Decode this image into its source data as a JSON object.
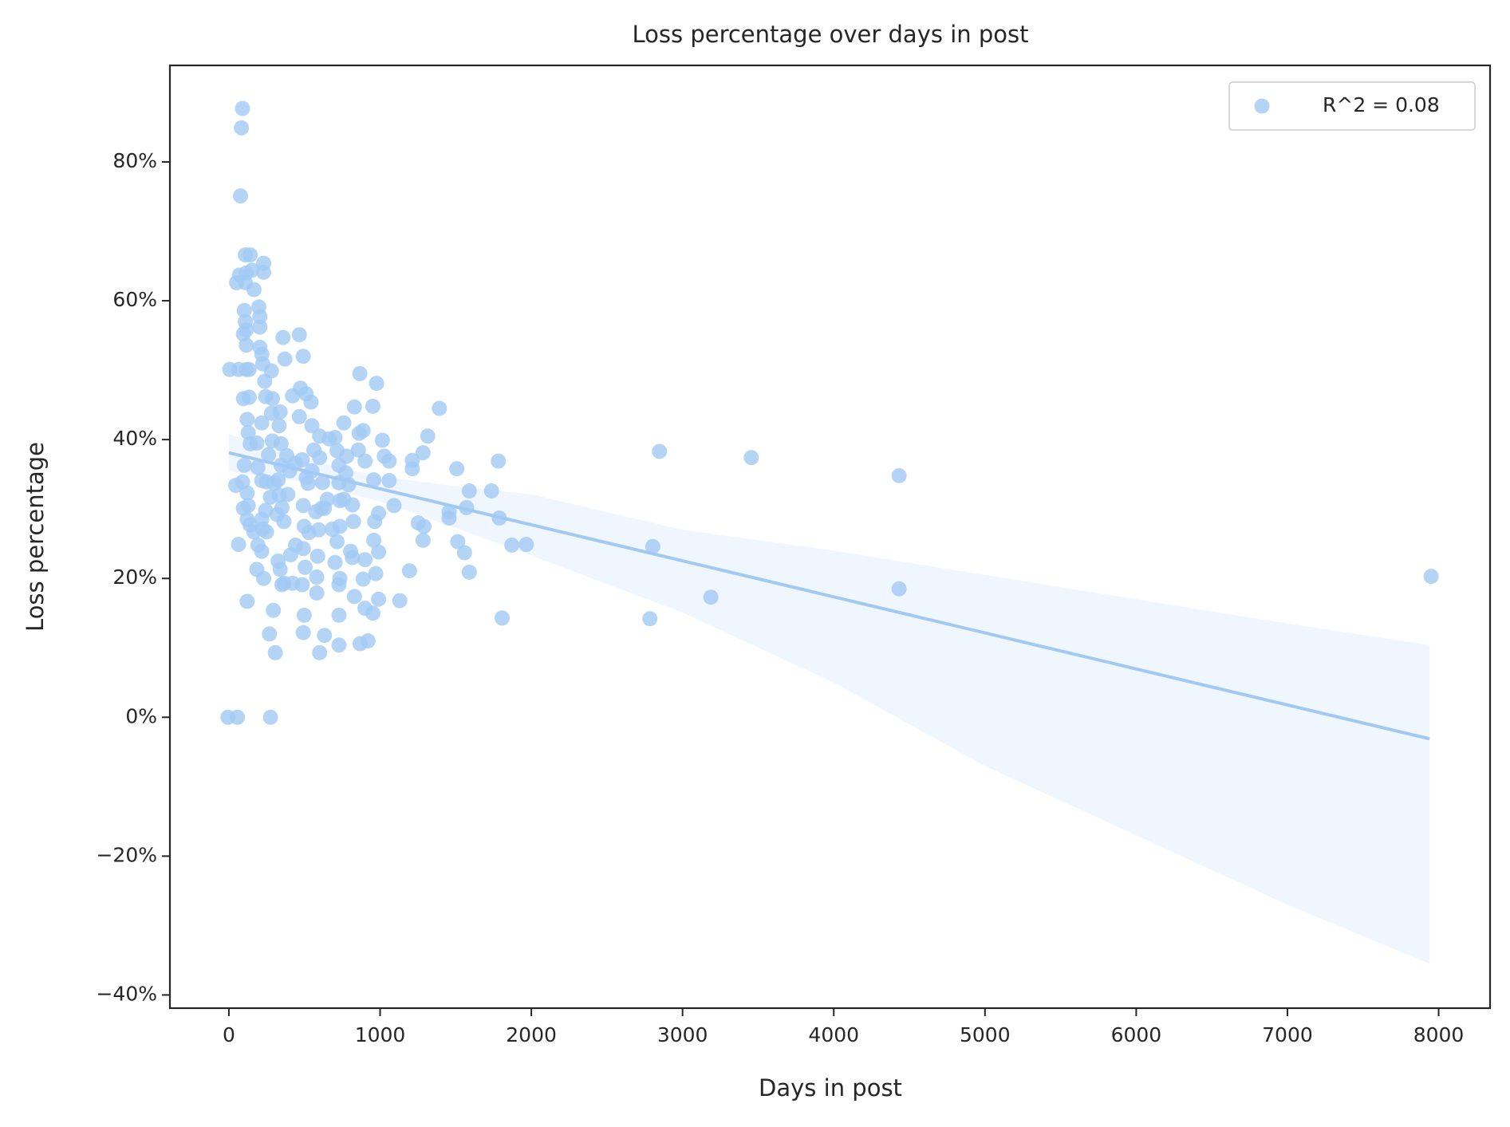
{
  "chart_data": {
    "type": "scatter",
    "title": "Loss percentage over days in post",
    "x_label": "Days in post",
    "y_label": "Loss percentage",
    "xlim": [
      -390,
      8340
    ],
    "ylim": [
      -41.9,
      93.9
    ],
    "xticks": [
      0,
      1000,
      2000,
      3000,
      4000,
      5000,
      6000,
      7000,
      8000
    ],
    "yticks": [
      {
        "value": -40,
        "label": "−40%"
      },
      {
        "value": -20,
        "label": "−20%"
      },
      {
        "value": 0,
        "label": "0%"
      },
      {
        "value": 20,
        "label": "20%"
      },
      {
        "value": 40,
        "label": "40%"
      },
      {
        "value": 60,
        "label": "60%"
      },
      {
        "value": 80,
        "label": "80%"
      }
    ],
    "grid": false,
    "legend": "upper right",
    "series": [
      {
        "name": "R^2 = 0.08",
        "color": "#a1c9f4",
        "x": [
          2848,
          3455,
          4432,
          4432,
          7950,
          2803,
          2784,
          3187,
          1967,
          1871,
          1807,
          1788,
          1782,
          1737,
          1590,
          1590,
          1571,
          1558,
          1513,
          1507,
          1456,
          1456,
          1392,
          1315,
          1284,
          1284,
          1290,
          1252,
          1213,
          1213,
          1194,
          1130,
          1092,
          1060,
          1060,
          1028,
          1015,
          977,
          952,
          866,
          830,
          862,
          760,
          856,
          900,
          958,
          990,
          964,
          958,
          990,
          971,
          990,
          952,
          900,
          920,
          868,
          888,
          900,
          830,
          817,
          805,
          817,
          824,
          792,
          773,
          728,
          715,
          702,
          664,
          728,
          734,
          734,
          715,
          702,
          734,
          728,
          728,
          728,
          632,
          600,
          581,
          581,
          587,
          594,
          613,
          619,
          600,
          600,
          549,
          543,
          492,
          466,
          358,
          370,
          473,
          421,
          511,
          466,
          485,
          511,
          492,
          498,
          492,
          504,
          485,
          498,
          492,
          421,
          409,
          441,
          364,
          351,
          339,
          326,
          364,
          351,
          332,
          326,
          345,
          345,
          332,
          339,
          282,
          288,
          243,
          237,
          224,
          218,
          281,
          262,
          249,
          243,
          224,
          249,
          268,
          307,
          294,
          275,
          230,
          217,
          192,
          217,
          217,
          192,
          185,
          217,
          205,
          230,
          230,
          205,
          205,
          198,
          166,
          153,
          141,
          109,
          115,
          109,
          51,
          70,
          77,
          90,
          83,
          102,
          109,
          115,
          96,
          115,
          6,
          64,
          115,
          134,
          96,
          134,
          121,
          128,
          141,
          102,
          90,
          45,
          121,
          128,
          96,
          121,
          141,
          166,
          64,
          121,
          185,
          -6,
          57,
          575,
          530,
          651,
          683,
          632,
          549,
          562,
          524,
          402,
          441,
          383,
          287,
          300,
          319,
          275,
          390,
          760,
          779,
          888
        ],
        "values": [
          38.3,
          37.4,
          34.8,
          18.5,
          20.3,
          24.6,
          14.2,
          17.3,
          24.9,
          24.8,
          14.3,
          28.7,
          36.9,
          32.6,
          32.6,
          20.9,
          30.2,
          23.7,
          25.3,
          35.8,
          28.7,
          29.6,
          44.5,
          40.5,
          38.1,
          25.5,
          27.5,
          28.0,
          35.8,
          37.0,
          21.1,
          16.8,
          30.5,
          34.1,
          36.9,
          37.6,
          39.9,
          48.1,
          44.8,
          49.5,
          44.7,
          40.9,
          42.4,
          38.5,
          36.9,
          34.2,
          29.4,
          28.2,
          25.5,
          23.8,
          20.7,
          17.0,
          15.0,
          15.7,
          11.0,
          10.6,
          19.9,
          22.7,
          17.4,
          23.0,
          23.9,
          30.6,
          28.2,
          33.5,
          35.2,
          36.3,
          38.4,
          40.3,
          40.1,
          33.8,
          31.2,
          27.5,
          25.3,
          22.3,
          20.0,
          19.1,
          14.7,
          10.4,
          11.8,
          9.3,
          17.9,
          20.2,
          23.2,
          27.0,
          30.1,
          33.8,
          37.4,
          40.5,
          42.0,
          45.4,
          52.0,
          55.1,
          54.7,
          51.6,
          47.4,
          46.3,
          46.6,
          43.3,
          37.1,
          34.5,
          30.5,
          27.5,
          24.3,
          21.6,
          19.1,
          14.7,
          12.2,
          19.3,
          23.4,
          24.8,
          19.3,
          19.1,
          21.3,
          22.5,
          28.2,
          30.2,
          32.0,
          34.2,
          36.3,
          39.4,
          42.0,
          44.0,
          43.8,
          45.9,
          46.2,
          48.4,
          50.9,
          52.3,
          49.9,
          37.8,
          33.9,
          29.8,
          27.1,
          26.7,
          12.0,
          9.3,
          15.4,
          0,
          20.0,
          23.9,
          24.8,
          28.5,
          34.1,
          36.0,
          39.5,
          42.4,
          57.7,
          64.1,
          65.4,
          56.2,
          53.3,
          59.1,
          61.6,
          64.4,
          66.6,
          66.6,
          64.0,
          62.6,
          62.6,
          63.7,
          75.1,
          87.7,
          84.9,
          58.6,
          57.0,
          55.8,
          55.2,
          53.6,
          50.1,
          50.1,
          50.1,
          50.1,
          45.9,
          46.1,
          42.9,
          41.0,
          39.4,
          36.3,
          33.9,
          33.4,
          32.3,
          30.5,
          30.1,
          28.5,
          27.7,
          26.7,
          24.9,
          16.7,
          21.3,
          0,
          0,
          29.6,
          26.6,
          31.4,
          27.1,
          30.1,
          35.5,
          38.5,
          33.7,
          35.5,
          36.6,
          37.7,
          39.8,
          33.7,
          29.2,
          31.7,
          32.1,
          31.4,
          37.6,
          41.3
        ]
      }
    ],
    "fit": {
      "x": [
        0,
        7940
      ],
      "y": [
        38.1,
        -3.1
      ]
    },
    "ci": {
      "x": [
        0,
        500,
        1000,
        1500,
        2000,
        3000,
        4000,
        5000,
        6000,
        7000,
        7940
      ],
      "upper": [
        40.8,
        37.1,
        34.7,
        33.3,
        32.1,
        27.0,
        24.0,
        20.5,
        17.0,
        13.5,
        10.4
      ],
      "lower": [
        35.4,
        33.9,
        31.1,
        27.3,
        23.3,
        15.1,
        5.0,
        -7.0,
        -17.0,
        -27.0,
        -35.5
      ]
    }
  }
}
